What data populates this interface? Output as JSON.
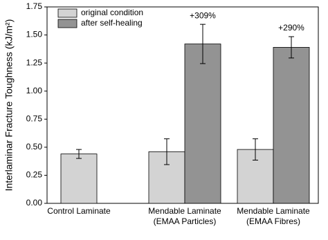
{
  "chart_data": {
    "type": "bar",
    "y_label": "Interlaminar Fracture Toughness (kJ/m²)",
    "categories": [
      [
        "Control Laminate"
      ],
      [
        "Mendable Laminate",
        "(EMAA Particles)"
      ],
      [
        "Mendable Laminate",
        "(EMAA Fibres)"
      ]
    ],
    "series": [
      {
        "name": "original condition",
        "color": "#d3d3d3",
        "values": [
          0.44,
          0.46,
          0.48
        ],
        "errors": [
          0.04,
          0.115,
          0.095
        ]
      },
      {
        "name": "after self-healing",
        "color": "#939393",
        "values": [
          null,
          1.42,
          1.39
        ],
        "errors": [
          null,
          0.175,
          0.095
        ]
      }
    ],
    "annotations": [
      null,
      "+309%",
      "+290%"
    ],
    "ylim": [
      0,
      1.75
    ],
    "yticks": [
      {
        "value": 0,
        "label": "0.00"
      },
      {
        "value": 0.25,
        "label": "0.25"
      },
      {
        "value": 0.5,
        "label": "0.50"
      },
      {
        "value": 0.75,
        "label": "0.75"
      },
      {
        "value": 1,
        "label": "1.00"
      },
      {
        "value": 1.25,
        "label": "1.25"
      },
      {
        "value": 1.5,
        "label": "1.50"
      },
      {
        "value": 1.75,
        "label": "1.75"
      }
    ],
    "legend": "upper left"
  }
}
